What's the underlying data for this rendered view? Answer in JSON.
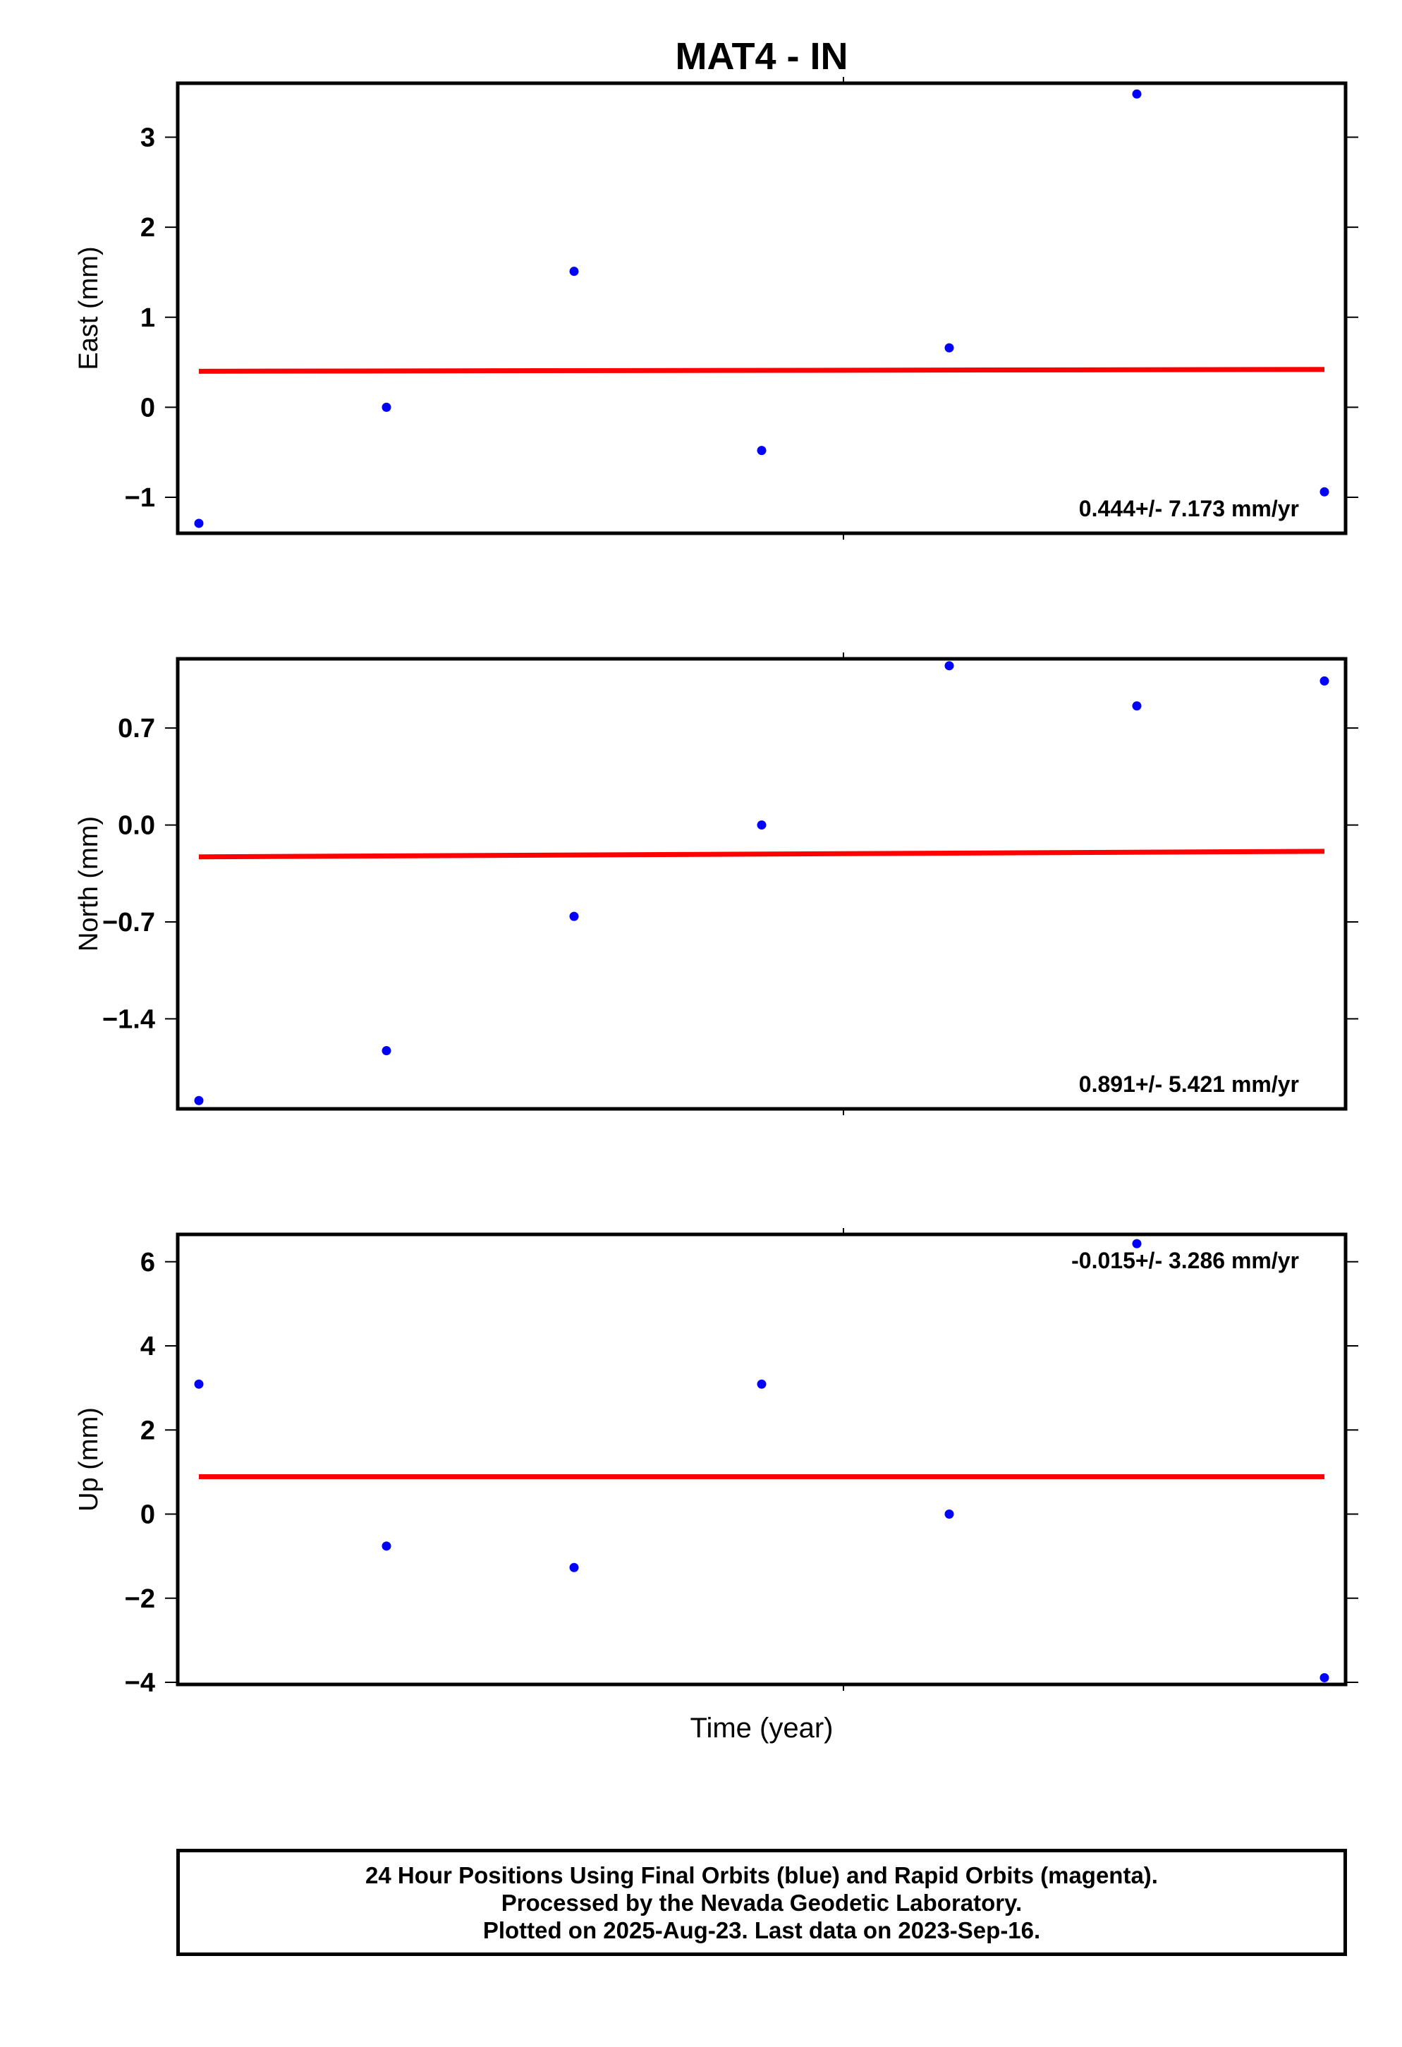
{
  "chart_data": {
    "type": "scatter",
    "title": "MAT4 - IN",
    "xlabel": "Time (year)",
    "colors": {
      "points": "#0000ff",
      "trend": "#ff0000",
      "axes": "#000000"
    },
    "panels": [
      {
        "ylabel": "East (mm)",
        "rate": "0.444+/- 7.173 mm/yr",
        "rate_position": "bottom-right",
        "ylim": [
          -1.4,
          3.6
        ],
        "yticks": [
          3,
          2,
          1,
          0,
          -1
        ],
        "ytick_labels": [
          "3",
          "2",
          "1",
          "0",
          "−1"
        ],
        "points": [
          {
            "x": 0,
            "y": -1.29
          },
          {
            "x": 1,
            "y": 0.0
          },
          {
            "x": 2,
            "y": 1.51
          },
          {
            "x": 3,
            "y": -0.48
          },
          {
            "x": 4,
            "y": 0.66
          },
          {
            "x": 5,
            "y": 3.48
          },
          {
            "x": 6,
            "y": -0.94
          }
        ],
        "trend": [
          0.4,
          0.42
        ]
      },
      {
        "ylabel": "North (mm)",
        "rate": "0.891+/- 5.421 mm/yr",
        "rate_position": "bottom-right",
        "ylim": [
          -2.05,
          1.2
        ],
        "yticks": [
          0.7,
          0.0,
          -0.7,
          -1.4
        ],
        "ytick_labels": [
          "0.7",
          "0.0",
          "−0.7",
          "−1.4"
        ],
        "points": [
          {
            "x": 0,
            "y": -1.99
          },
          {
            "x": 1,
            "y": -1.63
          },
          {
            "x": 2,
            "y": -0.66
          },
          {
            "x": 3,
            "y": 0.0
          },
          {
            "x": 4,
            "y": 1.15
          },
          {
            "x": 5,
            "y": 0.86
          },
          {
            "x": 6,
            "y": 1.04
          }
        ],
        "trend": [
          -0.23,
          -0.19
        ]
      },
      {
        "ylabel": "Up (mm)",
        "rate": "-0.015+/- 3.286 mm/yr",
        "rate_position": "top-right",
        "ylim": [
          -4.05,
          6.65
        ],
        "yticks": [
          6,
          4,
          2,
          0,
          -2,
          -4
        ],
        "ytick_labels": [
          "6",
          "4",
          "2",
          "0",
          "−2",
          "−4"
        ],
        "points": [
          {
            "x": 0,
            "y": 3.09
          },
          {
            "x": 1,
            "y": -0.76
          },
          {
            "x": 2,
            "y": -1.27
          },
          {
            "x": 3,
            "y": 3.09
          },
          {
            "x": 4,
            "y": 0.0
          },
          {
            "x": 5,
            "y": 6.43
          },
          {
            "x": 6,
            "y": -3.89
          }
        ],
        "trend": [
          0.89,
          0.89
        ]
      }
    ]
  },
  "footer": {
    "line1": "24 Hour Positions Using Final Orbits (blue) and Rapid Orbits (magenta).",
    "line2": "Processed by the Nevada Geodetic Laboratory.",
    "line3": "Plotted on 2025-Aug-23. Last data on 2023-Sep-16."
  }
}
